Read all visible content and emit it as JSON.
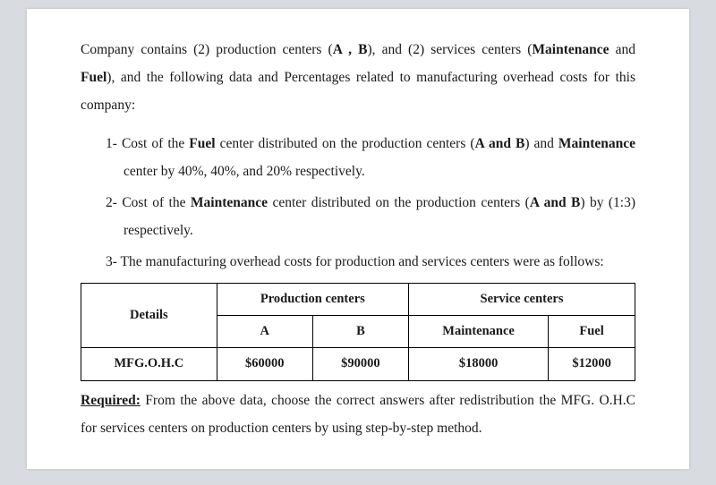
{
  "intro": {
    "line1_a": "Company contains (2) production centers (",
    "line1_b": "A , B",
    "line1_c": "), and (2) services centers",
    "line2_a": "(",
    "line2_b": "Maintenance",
    "line2_c": " and ",
    "line2_d": "Fuel",
    "line2_e": "), and the following data and Percentages related",
    "line3": "to manufacturing overhead costs for this company:"
  },
  "items": {
    "i1_a": "1- Cost of the ",
    "i1_b": "Fuel",
    "i1_c": " center distributed on the production centers (",
    "i1_d": "A and B",
    "i1_e": ") and ",
    "i1_f": "Maintenance",
    "i1_g": " center by 40%, 40%, and 20% respectively.",
    "i2_a": "2- Cost of the ",
    "i2_b": "Maintenance",
    "i2_c": " center distributed on the production centers (",
    "i2_d": "A and B",
    "i2_e": ") by (1:3) respectively.",
    "i3_a": "3- The manufacturing overhead costs for production and services centers were as follows:"
  },
  "table": {
    "headers": {
      "details": "Details",
      "prod": "Production centers",
      "serv": "Service centers",
      "a": "A",
      "b": "B",
      "maint": "Maintenance",
      "fuel": "Fuel"
    },
    "row_label": "MFG.O.H.C",
    "values": {
      "a": "$60000",
      "b": "$90000",
      "maint": "$18000",
      "fuel": "$12000"
    }
  },
  "required": {
    "label": "Required:",
    "text": " From the above data, choose the correct answers after redistribution the MFG. O.H.C for services centers on production centers by using step-by-step method."
  }
}
